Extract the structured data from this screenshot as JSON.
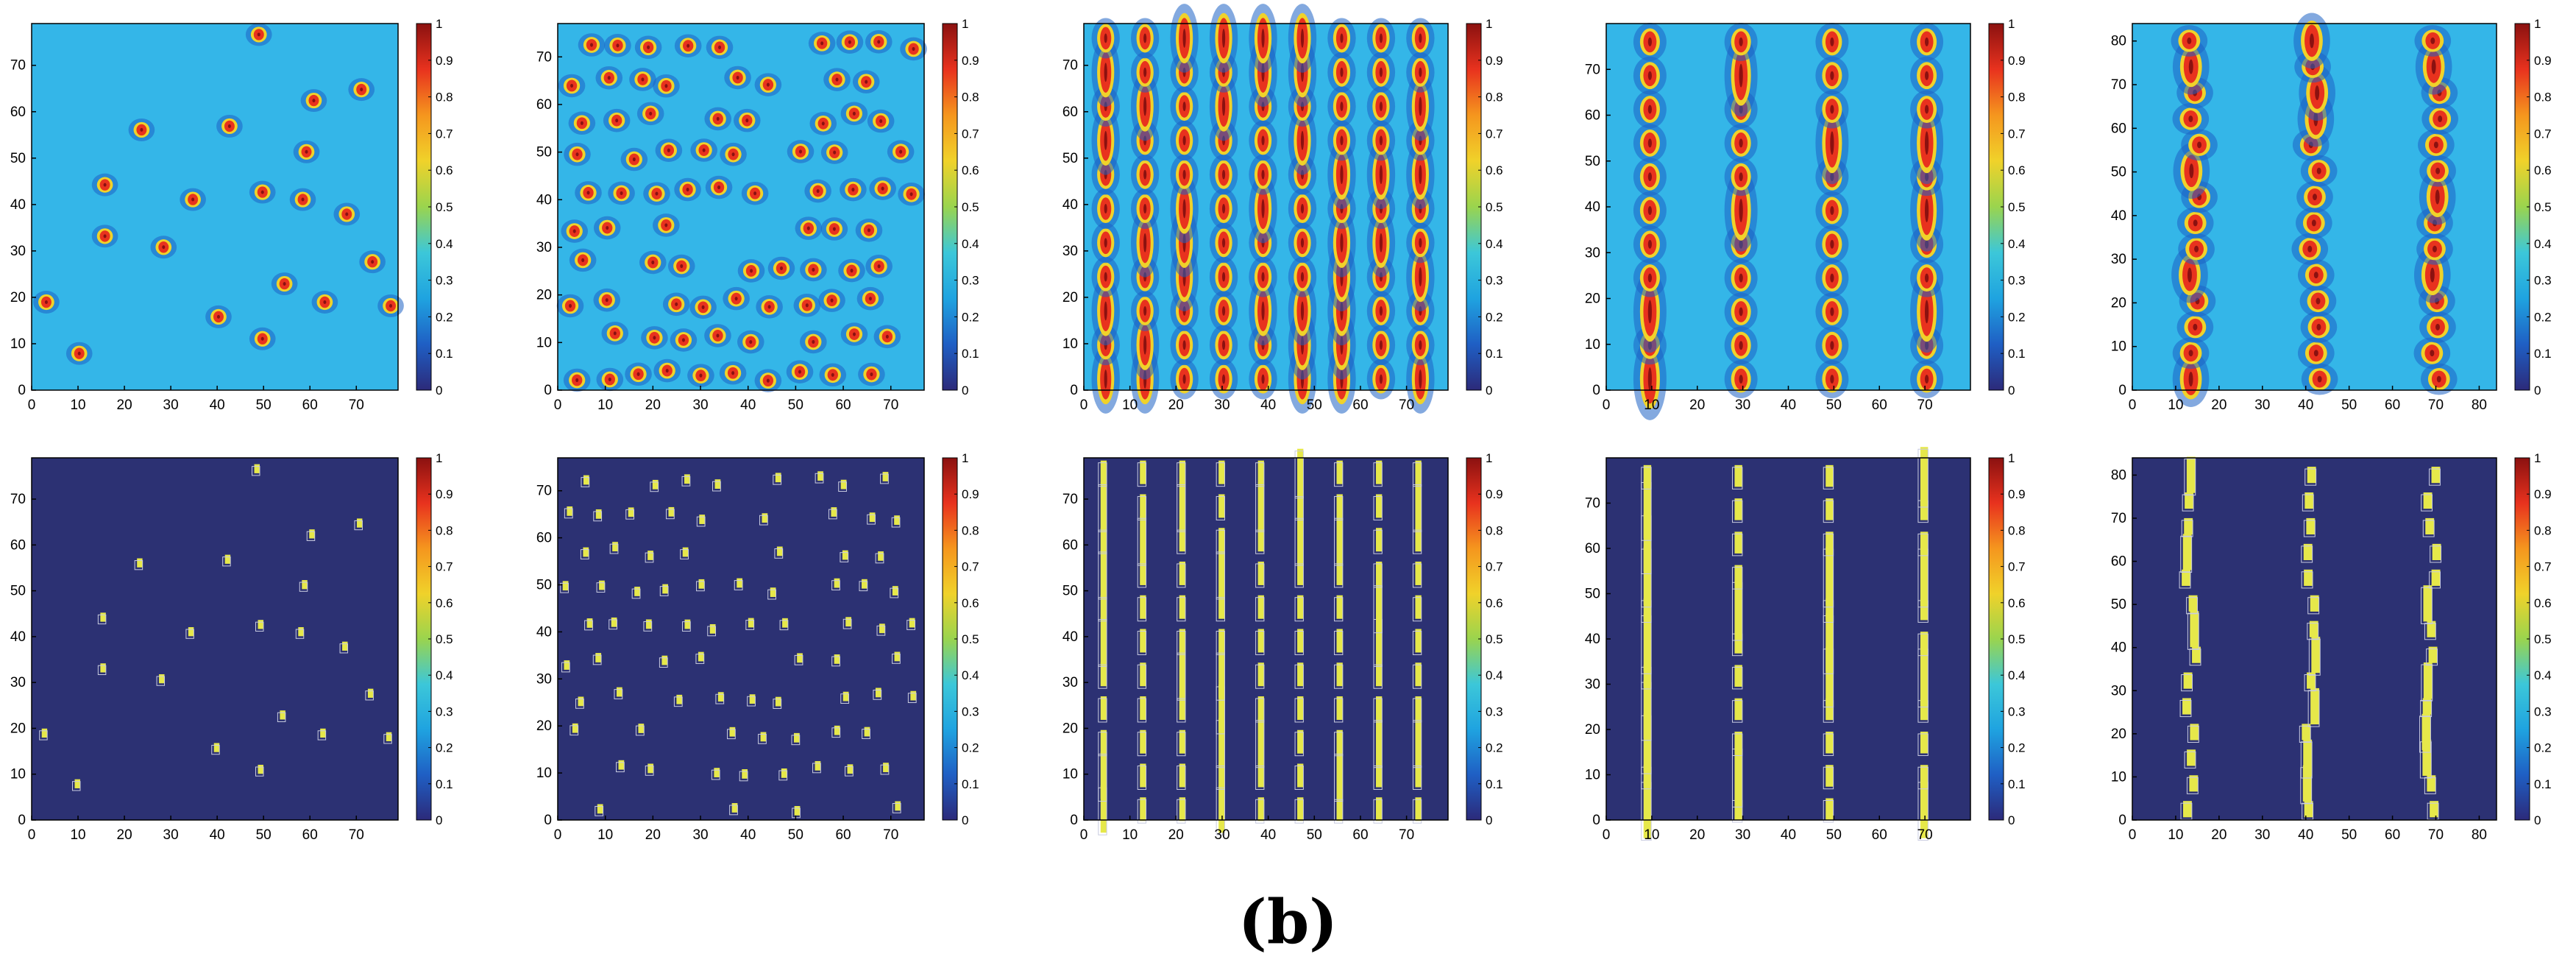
{
  "figure": {
    "label": "(b)"
  },
  "colors": {
    "background_top": "#34b6e8",
    "background_bottom": "#2c3173",
    "marker_yellow": "#e6e84a",
    "colormap": [
      "#2c2a7a",
      "#1f5fc4",
      "#1fa3e0",
      "#3cc7d9",
      "#9ad44e",
      "#f0d22a",
      "#f5961e",
      "#e8321e",
      "#8b1110"
    ]
  },
  "chart_data": [
    {
      "id": "top-1",
      "type": "heatmap",
      "pattern": "sparse-spots",
      "xticks": [
        "0",
        "10",
        "20",
        "30",
        "40",
        "50",
        "60",
        "70"
      ],
      "yticks": [
        "0",
        "10",
        "20",
        "30",
        "40",
        "50",
        "60",
        "70"
      ],
      "xlim": [
        0,
        79
      ],
      "ylim": [
        0,
        79
      ],
      "colorbar": {
        "ticks": [
          "0",
          "0.1",
          "0.2",
          "0.3",
          "0.4",
          "0.5",
          "0.6",
          "0.7",
          "0.8",
          "0.9",
          "1"
        ],
        "range": [
          0,
          1
        ]
      }
    },
    {
      "id": "top-2",
      "type": "heatmap",
      "pattern": "dense-spots",
      "xticks": [
        "0",
        "10",
        "20",
        "30",
        "40",
        "50",
        "60",
        "70"
      ],
      "yticks": [
        "0",
        "10",
        "20",
        "30",
        "40",
        "50",
        "60",
        "70"
      ],
      "xlim": [
        0,
        77
      ],
      "ylim": [
        0,
        77
      ],
      "colorbar": {
        "ticks": [
          "0",
          "0.1",
          "0.2",
          "0.3",
          "0.4",
          "0.5",
          "0.6",
          "0.7",
          "0.8",
          "0.9",
          "1"
        ],
        "range": [
          0,
          1
        ]
      }
    },
    {
      "id": "top-3",
      "type": "heatmap",
      "pattern": "many-stripes",
      "xticks": [
        "0",
        "10",
        "20",
        "30",
        "40",
        "50",
        "60",
        "70"
      ],
      "yticks": [
        "0",
        "10",
        "20",
        "30",
        "40",
        "50",
        "60",
        "70"
      ],
      "xlim": [
        0,
        79
      ],
      "ylim": [
        0,
        79
      ],
      "colorbar": {
        "ticks": [
          "0",
          "0.1",
          "0.2",
          "0.3",
          "0.4",
          "0.5",
          "0.6",
          "0.7",
          "0.8",
          "0.9",
          "1"
        ],
        "range": [
          0,
          1
        ]
      }
    },
    {
      "id": "top-4",
      "type": "heatmap",
      "pattern": "four-stripes",
      "xticks": [
        "0",
        "10",
        "20",
        "30",
        "40",
        "50",
        "60",
        "70"
      ],
      "yticks": [
        "0",
        "10",
        "20",
        "30",
        "40",
        "50",
        "60",
        "70"
      ],
      "xlim": [
        0,
        80
      ],
      "ylim": [
        0,
        80
      ],
      "colorbar": {
        "ticks": [
          "0",
          "0.1",
          "0.2",
          "0.3",
          "0.4",
          "0.5",
          "0.6",
          "0.7",
          "0.8",
          "0.9",
          "1"
        ],
        "range": [
          0,
          1
        ]
      }
    },
    {
      "id": "top-5",
      "type": "heatmap",
      "pattern": "three-stripes",
      "xticks": [
        "0",
        "10",
        "20",
        "30",
        "40",
        "50",
        "60",
        "70",
        "80"
      ],
      "yticks": [
        "0",
        "10",
        "20",
        "30",
        "40",
        "50",
        "60",
        "70",
        "80"
      ],
      "xlim": [
        0,
        84
      ],
      "ylim": [
        0,
        84
      ],
      "colorbar": {
        "ticks": [
          "0",
          "0.1",
          "0.2",
          "0.3",
          "0.4",
          "0.5",
          "0.6",
          "0.7",
          "0.8",
          "0.9",
          "1"
        ],
        "range": [
          0,
          1
        ]
      }
    },
    {
      "id": "bottom-1",
      "type": "heatmap",
      "pattern": "sparse-spots",
      "xticks": [
        "0",
        "10",
        "20",
        "30",
        "40",
        "50",
        "60",
        "70"
      ],
      "yticks": [
        "0",
        "10",
        "20",
        "30",
        "40",
        "50",
        "60",
        "70"
      ],
      "xlim": [
        0,
        79
      ],
      "ylim": [
        0,
        79
      ],
      "colorbar": {
        "ticks": [
          "0",
          "0.1",
          "0.2",
          "0.3",
          "0.4",
          "0.5",
          "0.6",
          "0.7",
          "0.8",
          "0.9",
          "1"
        ],
        "range": [
          0,
          1
        ]
      }
    },
    {
      "id": "bottom-2",
      "type": "heatmap",
      "pattern": "dense-spots",
      "xticks": [
        "0",
        "10",
        "20",
        "30",
        "40",
        "50",
        "60",
        "70"
      ],
      "yticks": [
        "0",
        "10",
        "20",
        "30",
        "40",
        "50",
        "60",
        "70"
      ],
      "xlim": [
        0,
        77
      ],
      "ylim": [
        0,
        77
      ],
      "colorbar": {
        "ticks": [
          "0",
          "0.1",
          "0.2",
          "0.3",
          "0.4",
          "0.5",
          "0.6",
          "0.7",
          "0.8",
          "0.9",
          "1"
        ],
        "range": [
          0,
          1
        ]
      }
    },
    {
      "id": "bottom-3",
      "type": "heatmap",
      "pattern": "many-stripes",
      "xticks": [
        "0",
        "10",
        "20",
        "30",
        "40",
        "50",
        "60",
        "70"
      ],
      "yticks": [
        "0",
        "10",
        "20",
        "30",
        "40",
        "50",
        "60",
        "70"
      ],
      "xlim": [
        0,
        79
      ],
      "ylim": [
        0,
        79
      ],
      "colorbar": {
        "ticks": [
          "0",
          "0.1",
          "0.2",
          "0.3",
          "0.4",
          "0.5",
          "0.6",
          "0.7",
          "0.8",
          "0.9",
          "1"
        ],
        "range": [
          0,
          1
        ]
      }
    },
    {
      "id": "bottom-4",
      "type": "heatmap",
      "pattern": "four-stripes",
      "xticks": [
        "0",
        "10",
        "20",
        "30",
        "40",
        "50",
        "60",
        "70"
      ],
      "yticks": [
        "0",
        "10",
        "20",
        "30",
        "40",
        "50",
        "60",
        "70"
      ],
      "xlim": [
        0,
        80
      ],
      "ylim": [
        0,
        80
      ],
      "colorbar": {
        "ticks": [
          "0",
          "0.1",
          "0.2",
          "0.3",
          "0.4",
          "0.5",
          "0.6",
          "0.7",
          "0.8",
          "0.9",
          "1"
        ],
        "range": [
          0,
          1
        ]
      }
    },
    {
      "id": "bottom-5",
      "type": "heatmap",
      "pattern": "three-stripes",
      "xticks": [
        "0",
        "10",
        "20",
        "30",
        "40",
        "50",
        "60",
        "70",
        "80"
      ],
      "yticks": [
        "0",
        "10",
        "20",
        "30",
        "40",
        "50",
        "60",
        "70",
        "80"
      ],
      "xlim": [
        0,
        84
      ],
      "ylim": [
        0,
        84
      ],
      "colorbar": {
        "ticks": [
          "0",
          "0.1",
          "0.2",
          "0.3",
          "0.4",
          "0.5",
          "0.6",
          "0.7",
          "0.8",
          "0.9",
          "1"
        ],
        "range": [
          0,
          1
        ]
      }
    }
  ]
}
